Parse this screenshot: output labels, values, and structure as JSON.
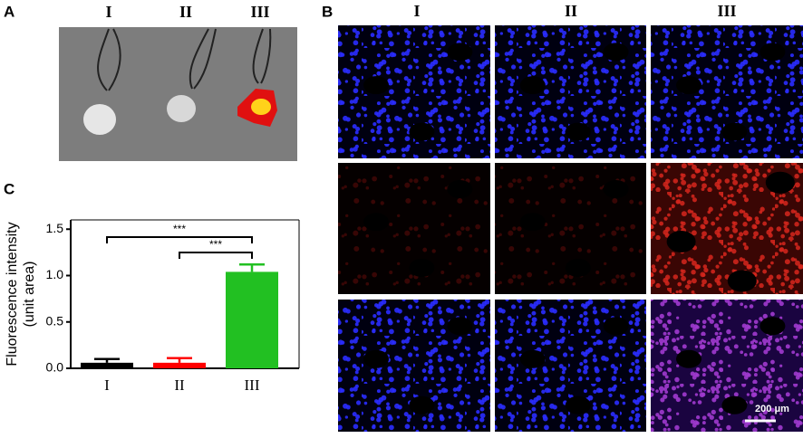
{
  "panel_labels": [
    "A",
    "B",
    "C"
  ],
  "panel_a": {
    "columns": [
      "I",
      "II",
      "III"
    ]
  },
  "panel_b": {
    "columns": [
      "I",
      "II",
      "III"
    ],
    "scale_bar": "200 μm"
  },
  "chart_data": {
    "type": "bar",
    "ylabel": [
      "Fluorescence intensity",
      "(unit area)"
    ],
    "categories": [
      "I",
      "II",
      "III"
    ],
    "values": [
      0.06,
      0.06,
      1.04
    ],
    "errors": [
      0.04,
      0.05,
      0.08
    ],
    "colors": [
      "#000000",
      "#ff0000",
      "#22c022"
    ],
    "ylim": [
      0,
      1.6
    ],
    "yticks": [
      {
        "value": 0,
        "label": "0.0"
      },
      0.5,
      {
        "value": 1,
        "label": "1.0"
      },
      1.5
    ],
    "annotations": [
      "***",
      "***"
    ]
  }
}
